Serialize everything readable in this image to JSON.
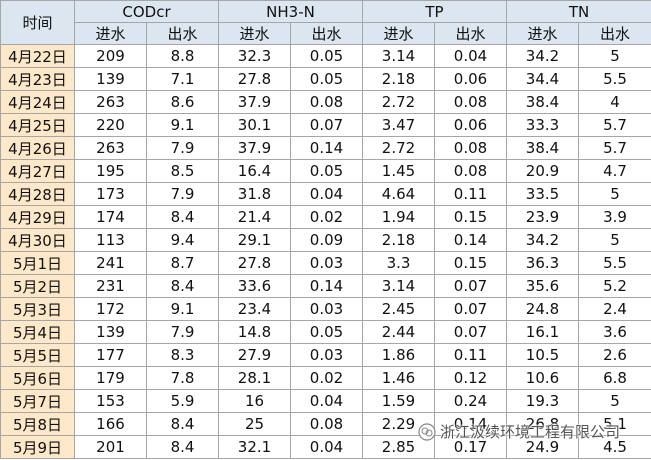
{
  "header": {
    "time": "时间",
    "groups": [
      {
        "name": "CODcr",
        "columns": [
          "进水",
          "出水"
        ]
      },
      {
        "name": "NH3-N",
        "columns": [
          "进水",
          "出水"
        ]
      },
      {
        "name": "TP",
        "columns": [
          "进水",
          "出水"
        ]
      },
      {
        "name": "TN",
        "columns": [
          "进水",
          "出水"
        ]
      }
    ]
  },
  "rows": [
    [
      "4月22日",
      "209",
      "8.8",
      "32.3",
      "0.05",
      "3.14",
      "0.04",
      "34.2",
      "5"
    ],
    [
      "4月23日",
      "139",
      "7.1",
      "27.8",
      "0.05",
      "2.18",
      "0.06",
      "34.4",
      "5.5"
    ],
    [
      "4月24日",
      "263",
      "8.6",
      "37.9",
      "0.08",
      "2.72",
      "0.08",
      "38.4",
      "4"
    ],
    [
      "4月25日",
      "220",
      "9.1",
      "30.1",
      "0.07",
      "3.47",
      "0.06",
      "33.3",
      "5.7"
    ],
    [
      "4月26日",
      "263",
      "7.9",
      "37.9",
      "0.14",
      "2.72",
      "0.08",
      "38.4",
      "5.7"
    ],
    [
      "4月27日",
      "195",
      "8.5",
      "16.4",
      "0.05",
      "1.45",
      "0.08",
      "20.9",
      "4.7"
    ],
    [
      "4月28日",
      "173",
      "7.9",
      "31.8",
      "0.04",
      "4.64",
      "0.11",
      "33.5",
      "5"
    ],
    [
      "4月29日",
      "174",
      "8.4",
      "21.4",
      "0.02",
      "1.94",
      "0.15",
      "23.9",
      "3.9"
    ],
    [
      "4月30日",
      "113",
      "9.4",
      "29.1",
      "0.09",
      "2.18",
      "0.14",
      "34.2",
      "5"
    ],
    [
      "5月1日",
      "241",
      "8.7",
      "27.8",
      "0.03",
      "3.3",
      "0.15",
      "36.3",
      "5.5"
    ],
    [
      "5月2日",
      "231",
      "8.4",
      "33.6",
      "0.14",
      "3.14",
      "0.07",
      "35.6",
      "5.2"
    ],
    [
      "5月3日",
      "172",
      "9.1",
      "23.4",
      "0.03",
      "2.45",
      "0.07",
      "24.8",
      "2.4"
    ],
    [
      "5月4日",
      "139",
      "7.9",
      "14.8",
      "0.05",
      "2.44",
      "0.07",
      "16.1",
      "3.6"
    ],
    [
      "5月5日",
      "177",
      "8.3",
      "27.9",
      "0.03",
      "1.86",
      "0.11",
      "10.5",
      "2.6"
    ],
    [
      "5月6日",
      "179",
      "7.8",
      "28.1",
      "0.02",
      "1.46",
      "0.12",
      "10.6",
      "6.8"
    ],
    [
      "5月7日",
      "153",
      "5.9",
      "16",
      "0.04",
      "1.59",
      "0.24",
      "19.3",
      "5"
    ],
    [
      "5月8日",
      "166",
      "8.4",
      "25",
      "0.08",
      "2.29",
      "0.14",
      "26.8",
      "5.1"
    ],
    [
      "5月9日",
      "201",
      "8.4",
      "32.1",
      "0.04",
      "2.85",
      "0.17",
      "24.9",
      "4.5"
    ]
  ],
  "watermark": "浙江汲续环境工程有限公司"
}
